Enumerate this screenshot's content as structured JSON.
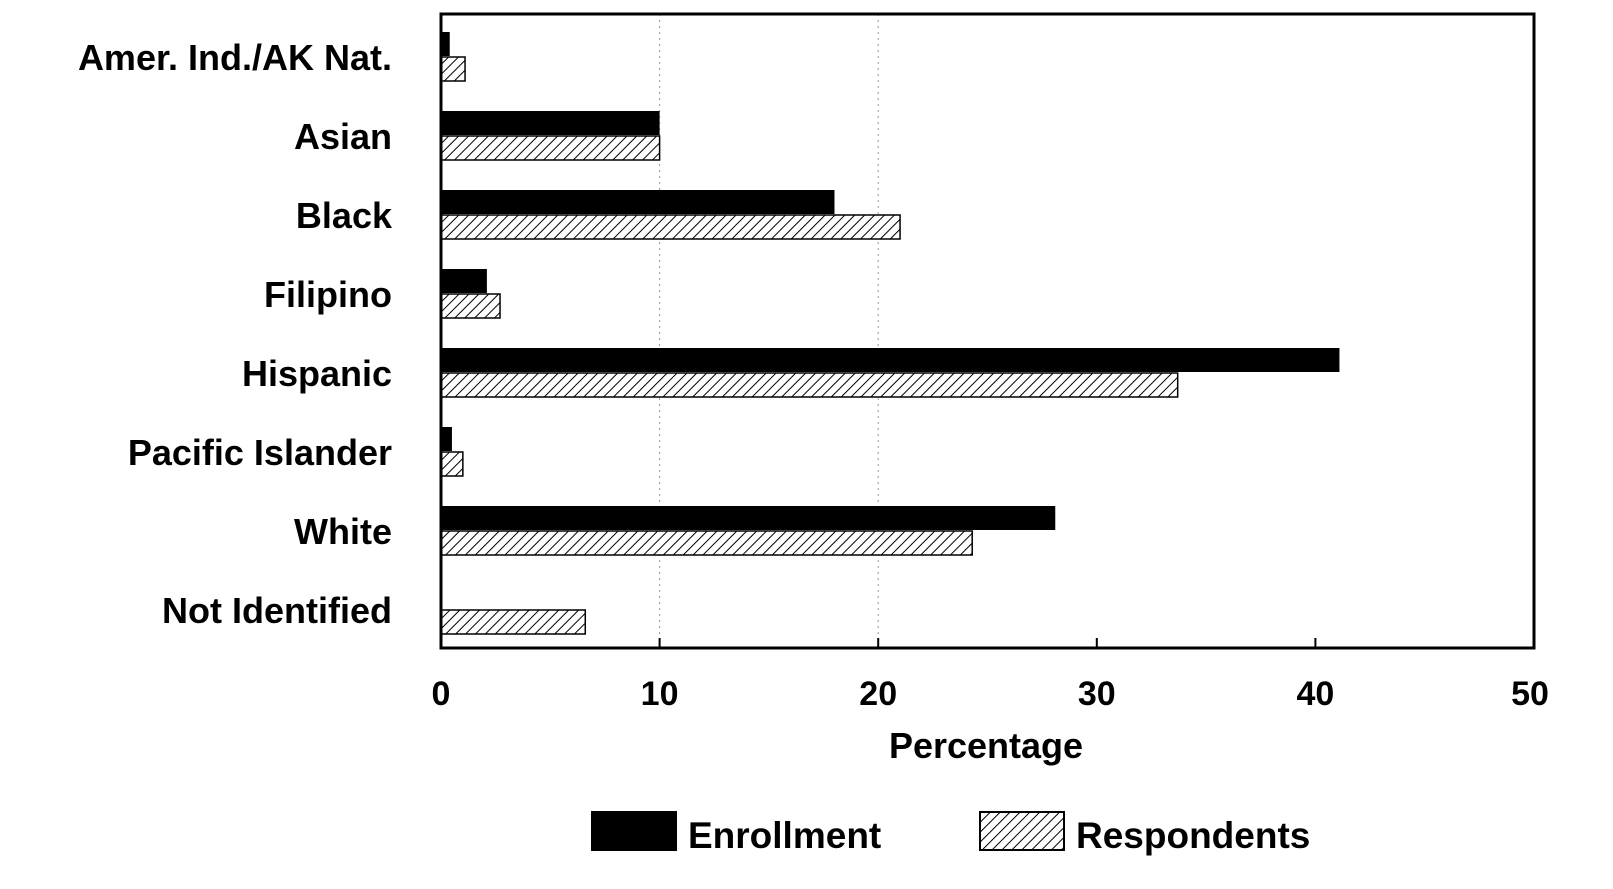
{
  "chart_data": {
    "type": "bar",
    "orientation": "horizontal",
    "categories": [
      "Amer. Ind./AK Nat.",
      "Asian",
      "Black",
      "Filipino",
      "Hispanic",
      "Pacific Islander",
      "White",
      "Not Identified"
    ],
    "series": [
      {
        "name": "Enrollment",
        "color": "#000000",
        "fill": "solid",
        "values": [
          0.4,
          10.0,
          18.0,
          2.1,
          41.1,
          0.5,
          28.1,
          0.0
        ]
      },
      {
        "name": "Respondents",
        "color": "#000000",
        "fill": "diagonal-hatch",
        "values": [
          1.1,
          10.0,
          21.0,
          2.7,
          33.7,
          1.0,
          24.3,
          6.6
        ]
      }
    ],
    "xlabel": "Percentage",
    "ylabel": "",
    "title": "",
    "xlim": [
      0,
      50
    ],
    "xticks": [
      "0",
      "10",
      "20",
      "30",
      "40",
      "50"
    ],
    "grid": "vertical dotted at 10 and 20",
    "legend_position": "bottom"
  }
}
